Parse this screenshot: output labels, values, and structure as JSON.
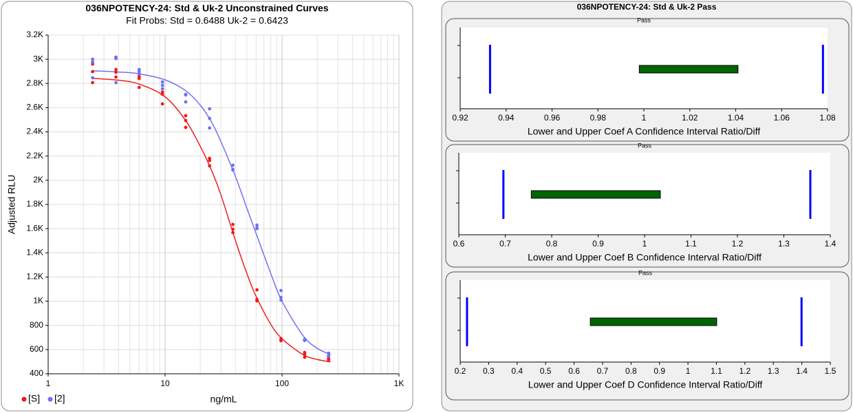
{
  "panel_title": "036NPOTENCY-24: Std & Uk-2 Pass",
  "chart_data": [
    {
      "type": "scatter",
      "title": "036NPOTENCY-24: Std & Uk-2  Unconstrained Curves",
      "subtitle": "Fit Probs: Std = 0.6488  Uk-2 = 0.6423",
      "x_label": "ng/mL",
      "y_label": "Adjusted RLU",
      "xlog": true,
      "grid": true,
      "legend": "bottom-left",
      "xlim": [
        1,
        1000
      ],
      "xticks": [
        1,
        10,
        100,
        {
          "value": 1000,
          "label": "1K"
        }
      ],
      "ylim": [
        400,
        3200
      ],
      "yticks": [
        400,
        600,
        800,
        {
          "value": 1000,
          "label": "1K"
        },
        {
          "value": 1200,
          "label": "1.2K"
        },
        {
          "value": 1400,
          "label": "1.4K"
        },
        {
          "value": 1600,
          "label": "1.6K"
        },
        {
          "value": 1800,
          "label": "1.8K"
        },
        {
          "value": 2000,
          "label": "2K"
        },
        {
          "value": 2200,
          "label": "2.2K"
        },
        {
          "value": 2400,
          "label": "2.4K"
        },
        {
          "value": 2600,
          "label": "2.6K"
        },
        {
          "value": 2800,
          "label": "2.8K"
        },
        {
          "value": 3000,
          "label": "3K"
        },
        {
          "value": 3200,
          "label": "3.2K"
        }
      ],
      "series": [
        {
          "name": "[S]",
          "color": "#ee1c1c",
          "x": [
            2.4,
            2.4,
            2.4,
            3.8,
            3.8,
            3.8,
            6,
            6,
            6,
            9.5,
            9.5,
            9.5,
            15,
            15,
            15,
            24,
            24,
            24,
            38,
            38,
            38,
            61,
            61,
            61,
            98,
            98,
            98,
            156,
            156,
            156,
            250,
            250,
            250
          ],
          "values": [
            2961,
            2898,
            2807,
            2915,
            2893,
            2853,
            2858,
            2841,
            2767,
            2728,
            2710,
            2631,
            2534,
            2494,
            2437,
            2181,
            2164,
            2119,
            1635,
            1595,
            1567,
            1094,
            1014,
            1003,
            690,
            680,
            673,
            576,
            559,
            536,
            542,
            525,
            514
          ],
          "fit": {
            "x": [
              2.4,
              4,
              6,
              10,
              15,
              20,
              25,
              30,
              40,
              50,
              60,
              80,
              100,
              150,
              200,
              260
            ],
            "values": [
              2843,
              2827,
              2795,
              2690,
              2494,
              2280,
              2080,
              1880,
              1500,
              1230,
              1040,
              810,
              690,
              560,
              518,
              498
            ]
          }
        },
        {
          "name": "[2]",
          "color": "#6f6ff5",
          "x": [
            2.4,
            2.4,
            2.4,
            3.8,
            3.8,
            3.8,
            6,
            6,
            6,
            9.5,
            9.5,
            9.5,
            15,
            15,
            15,
            24,
            24,
            24,
            38,
            38,
            38,
            61,
            61,
            61,
            98,
            98,
            98,
            156,
            156,
            156,
            250,
            250,
            250
          ],
          "values": [
            3001,
            2978,
            2847,
            3018,
            3006,
            2807,
            2915,
            2898,
            2881,
            2813,
            2784,
            2756,
            2710,
            2705,
            2648,
            2591,
            2511,
            2432,
            2124,
            2090,
            2085,
            1629,
            1606,
            1600,
            1088,
            1031,
            1009,
            684,
            679,
            675,
            570,
            548,
            545
          ],
          "fit": {
            "x": [
              2.4,
              4,
              6,
              10,
              15,
              20,
              25,
              30,
              40,
              50,
              60,
              80,
              100,
              150,
              200,
              260
            ],
            "values": [
              2905,
              2895,
              2880,
              2830,
              2740,
              2620,
              2480,
              2320,
              2030,
              1770,
              1560,
              1230,
              1000,
              720,
              610,
              560
            ]
          }
        }
      ]
    },
    {
      "type": "interval",
      "title": "Pass",
      "x_label": "Lower and Upper Coef A Confidence Interval Ratio/Diff",
      "xlim": [
        0.92,
        1.08
      ],
      "xticks": [
        0.92,
        0.94,
        0.96,
        0.98,
        1,
        1.02,
        1.04,
        1.06,
        1.08
      ],
      "limits": [
        0.933,
        1.078
      ],
      "interval": [
        0.998,
        1.041
      ],
      "limit_color": "#0000ff",
      "interval_color": "#006400"
    },
    {
      "type": "interval",
      "title": "Pass",
      "x_label": "Lower and Upper Coef B Confidence Interval Ratio/Diff",
      "xlim": [
        0.6,
        1.4
      ],
      "xticks": [
        0.6,
        0.7,
        0.8,
        0.9,
        1,
        1.1,
        1.2,
        1.3,
        1.4
      ],
      "limits": [
        0.696,
        1.357
      ],
      "interval": [
        0.756,
        1.034
      ],
      "limit_color": "#0000ff",
      "interval_color": "#006400"
    },
    {
      "type": "interval",
      "title": "Pass",
      "x_label": "Lower and Upper Coef D Confidence Interval Ratio/Diff",
      "xlim": [
        0.2,
        1.5
      ],
      "xticks": [
        0.2,
        0.3,
        0.4,
        0.5,
        0.6,
        0.7,
        0.8,
        0.9,
        1,
        1.1,
        1.2,
        1.3,
        1.4,
        1.5
      ],
      "limits": [
        0.224,
        1.399
      ],
      "interval": [
        0.657,
        1.101
      ],
      "limit_color": "#0000ff",
      "interval_color": "#006400"
    }
  ]
}
